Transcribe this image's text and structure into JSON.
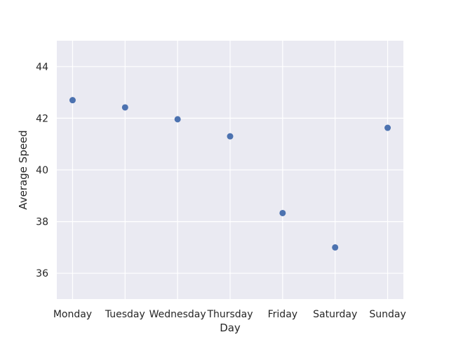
{
  "chart_data": {
    "type": "scatter",
    "title": "",
    "xlabel": "Day",
    "ylabel": "Average Speed",
    "categories": [
      "Monday",
      "Tuesday",
      "Wednesday",
      "Thursday",
      "Friday",
      "Saturday",
      "Sunday"
    ],
    "series": [
      {
        "values": [
          42.7,
          42.42,
          41.96,
          41.3,
          38.33,
          37.0,
          41.63
        ],
        "color": "#4c72b0"
      }
    ],
    "ylim": [
      35,
      45
    ],
    "yticks": [
      36,
      38,
      40,
      42,
      44
    ],
    "grid": true,
    "background": "#eaeaf2",
    "gridColor": "#ffffff"
  }
}
